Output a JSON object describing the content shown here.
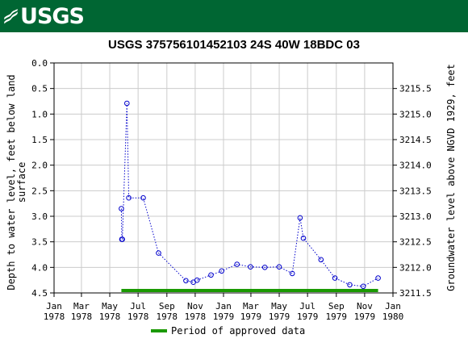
{
  "header": {
    "logo_text": "USGS",
    "logo_icon": "usgs-wave-icon",
    "background": "#006633"
  },
  "chart_data": {
    "type": "line",
    "title": "USGS 375756101452103 24S 40W 18BDC 03",
    "ylabel_left": [
      "Depth to water level, feet below land",
      "surface"
    ],
    "ylabel_right": "Groundwater level above NGVD 1929, feet",
    "ylim_left": [
      4.5,
      0.0
    ],
    "yticks_left": [
      "0.0",
      "0.5",
      "1.0",
      "1.5",
      "2.0",
      "2.5",
      "3.0",
      "3.5",
      "4.0",
      "4.5"
    ],
    "yticks_right": [
      "3215.5",
      "3215.0",
      "3214.5",
      "3214.0",
      "3213.5",
      "3213.0",
      "3212.5",
      "3212.0",
      "3211.5"
    ],
    "xlim": [
      "1978-01-01",
      "1980-01-01"
    ],
    "xticks": [
      [
        "Jan",
        "1978"
      ],
      [
        "Mar",
        "1978"
      ],
      [
        "May",
        "1978"
      ],
      [
        "Jul",
        "1978"
      ],
      [
        "Sep",
        "1978"
      ],
      [
        "Nov",
        "1978"
      ],
      [
        "Jan",
        "1979"
      ],
      [
        "Mar",
        "1979"
      ],
      [
        "May",
        "1979"
      ],
      [
        "Jul",
        "1979"
      ],
      [
        "Sep",
        "1979"
      ],
      [
        "Nov",
        "1979"
      ],
      [
        "Jan",
        "1980"
      ]
    ],
    "grid": true,
    "series": [
      {
        "name": "",
        "color": "#0000cc",
        "line_style": "dotted",
        "marker": "open-circle",
        "points": [
          {
            "x": "1978-05-26",
            "y": 2.85
          },
          {
            "x": "1978-05-27",
            "y": 3.45
          },
          {
            "x": "1978-05-28",
            "y": 3.45
          },
          {
            "x": "1978-06-07",
            "y": 0.79
          },
          {
            "x": "1978-06-11",
            "y": 2.64
          },
          {
            "x": "1978-07-12",
            "y": 2.64
          },
          {
            "x": "1978-08-14",
            "y": 3.72
          },
          {
            "x": "1978-10-12",
            "y": 4.26
          },
          {
            "x": "1978-10-28",
            "y": 4.29
          },
          {
            "x": "1978-11-05",
            "y": 4.25
          },
          {
            "x": "1978-12-05",
            "y": 4.15
          },
          {
            "x": "1978-12-28",
            "y": 4.07
          },
          {
            "x": "1979-01-30",
            "y": 3.94
          },
          {
            "x": "1979-02-28",
            "y": 3.99
          },
          {
            "x": "1979-03-31",
            "y": 4.0
          },
          {
            "x": "1979-05-01",
            "y": 3.99
          },
          {
            "x": "1979-05-29",
            "y": 4.12
          },
          {
            "x": "1979-06-15",
            "y": 3.03
          },
          {
            "x": "1979-06-22",
            "y": 3.43
          },
          {
            "x": "1979-07-30",
            "y": 3.85
          },
          {
            "x": "1979-08-29",
            "y": 4.21
          },
          {
            "x": "1979-09-30",
            "y": 4.34
          },
          {
            "x": "1979-10-29",
            "y": 4.37
          },
          {
            "x": "1979-11-30",
            "y": 4.21
          }
        ]
      }
    ],
    "approved_period": {
      "start": "1978-05-26",
      "end": "1979-11-30",
      "color": "#1a9900"
    },
    "legend": {
      "label": "Period of approved data",
      "placement": "bottom-center"
    }
  }
}
